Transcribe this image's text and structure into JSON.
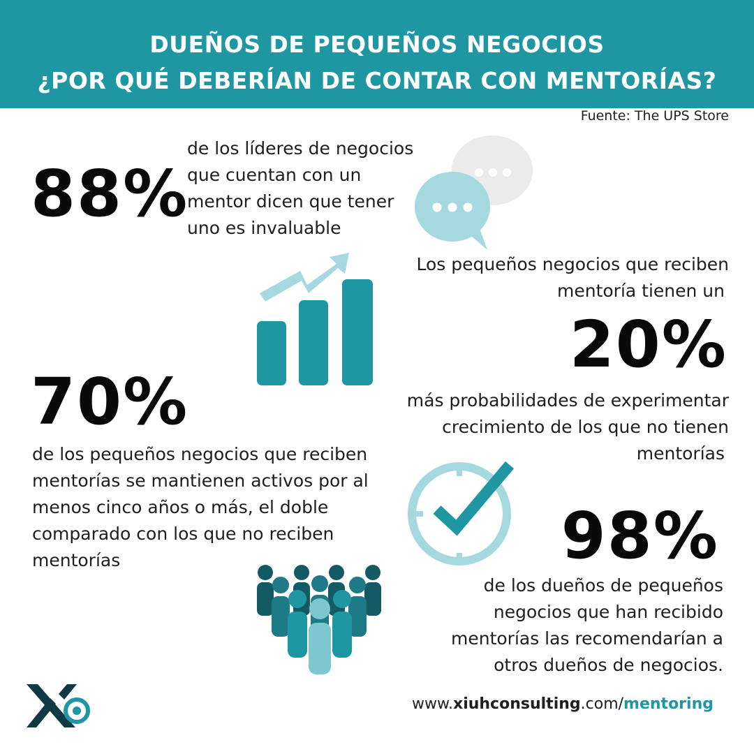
{
  "header": {
    "title_line1": "DUEÑOS DE PEQUEÑOS NEGOCIOS",
    "title_line2": "¿POR QUÉ DEBERÍAN DE CONTAR CON MENTORÍAS?"
  },
  "source": "Fuente: The UPS Store",
  "stats": [
    {
      "value": "88%",
      "lines": [
        "de los líderes de negocios",
        "que cuentan con un",
        "mentor dicen que tener",
        "uno es invaluable"
      ]
    },
    {
      "value": "20%",
      "intro_lines": [
        "Los pequeños negocios que reciben",
        "mentoría tienen un"
      ],
      "lines": [
        "más probabilidades de experimentar",
        "crecimiento de los que no tienen",
        "mentorías"
      ]
    },
    {
      "value": "70%",
      "lines": [
        "de los pequeños negocios que reciben",
        "mentorías se mantienen activos por al",
        "menos cinco años o más, el doble",
        "comparado con los que no reciben",
        "mentorías"
      ]
    },
    {
      "value": "98%",
      "lines": [
        "de los dueños de pequeños",
        "negocios que han recibido",
        "mentorías las recomendarían a",
        "otros dueños de negocios."
      ]
    }
  ],
  "footer": {
    "url_prefix": "www.",
    "url_domain": "xiuhconsulting",
    "url_mid": ".com/",
    "url_path": "mentoring"
  },
  "icons": [
    "chat-bubbles-icon",
    "growth-chart-icon",
    "clock-check-icon",
    "people-group-icon",
    "logo-icon"
  ],
  "colors": {
    "teal": "#1f97a3",
    "light_teal": "#a6d9df",
    "dark_teal": "#145a64",
    "gray": "#ebebeb"
  }
}
